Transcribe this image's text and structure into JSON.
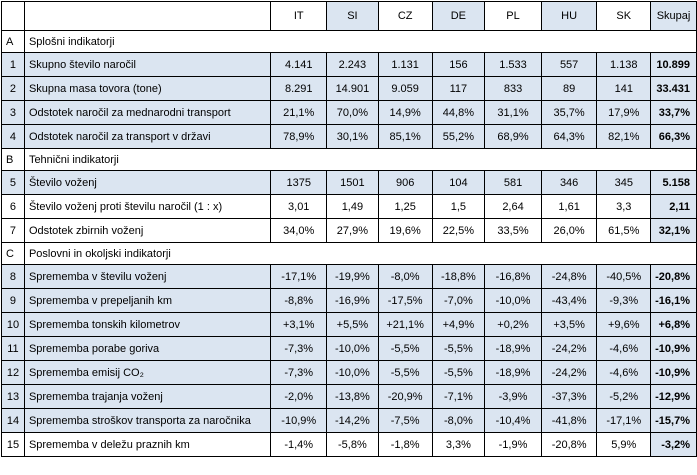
{
  "columns": [
    "IT",
    "SI",
    "CZ",
    "DE",
    "PL",
    "HU",
    "SK",
    "Skupaj"
  ],
  "sections": [
    {
      "letter": "A",
      "title": "Splošni indikatorji",
      "rows": [
        {
          "num": "1",
          "label": "Skupno število naročil",
          "values": [
            "4.141",
            "2.243",
            "1.131",
            "156",
            "1.533",
            "557",
            "1.138"
          ],
          "total": "10.899",
          "shade": "blue"
        },
        {
          "num": "2",
          "label": "Skupna masa tovora (tone)",
          "values": [
            "8.291",
            "14.901",
            "9.059",
            "117",
            "833",
            "89",
            "141"
          ],
          "total": "33.431",
          "shade": "blue"
        },
        {
          "num": "3",
          "label": "Odstotek naročil za mednarodni transport",
          "values": [
            "21,1%",
            "70,0%",
            "14,9%",
            "44,8%",
            "31,1%",
            "35,7%",
            "17,9%"
          ],
          "total": "33,7%",
          "shade": "blue"
        },
        {
          "num": "4",
          "label": "Odstotek naročil za transport v državi",
          "values": [
            "78,9%",
            "30,1%",
            "85,1%",
            "55,2%",
            "68,9%",
            "64,3%",
            "82,1%"
          ],
          "total": "66,3%",
          "shade": "blue"
        }
      ]
    },
    {
      "letter": "B",
      "title": "Tehnični indikatorji",
      "rows": [
        {
          "num": "5",
          "label": "Število voženj",
          "values": [
            "1375",
            "1501",
            "906",
            "104",
            "581",
            "346",
            "345"
          ],
          "total": "5.158",
          "shade": "blue"
        },
        {
          "num": "6",
          "label": "Število voženj proti številu naročil  (1 : x)",
          "values": [
            "3,01",
            "1,49",
            "1,25",
            "1,5",
            "2,64",
            "1,61",
            "3,3"
          ],
          "total": "2,11",
          "shade": "white"
        },
        {
          "num": "7",
          "label": "Odstotek zbirnih voženj",
          "values": [
            "34,0%",
            "27,9%",
            "19,6%",
            "22,5%",
            "33,5%",
            "26,0%",
            "61,5%"
          ],
          "total": "32,1%",
          "shade": "white"
        }
      ]
    },
    {
      "letter": "C",
      "title": "Poslovni in okoljski indikatorji",
      "rows": [
        {
          "num": "8",
          "label": "Sprememba v številu voženj",
          "values": [
            "-17,1%",
            "-19,9%",
            "-8,0%",
            "-18,8%",
            "-16,8%",
            "-24,8%",
            "-40,5%"
          ],
          "total": "-20,8%",
          "shade": "blue"
        },
        {
          "num": "9",
          "label": "Sprememba v prepeljanih  km",
          "values": [
            "-8,8%",
            "-16,9%",
            "-17,5%",
            "-7,0%",
            "-10,0%",
            "-43,4%",
            "-9,3%"
          ],
          "total": "-16,1%",
          "shade": "blue"
        },
        {
          "num": "10",
          "label": "Sprememba tonskih kilometrov",
          "values": [
            "+3,1%",
            "+5,5%",
            "+21,1%",
            "+4,9%",
            "+0,2%",
            "+3,5%",
            "+9,6%"
          ],
          "total": "+6,8%",
          "shade": "blue"
        },
        {
          "num": "11",
          "label": "Sprememba porabe goriva",
          "values": [
            "-7,3%",
            "-10,0%",
            "-5,5%",
            "-5,5%",
            "-18,9%",
            "-24,2%",
            "-4,6%"
          ],
          "total": "-10,9%",
          "shade": "blue"
        },
        {
          "num": "12",
          "label": "Sprememba emisij CO₂",
          "values": [
            "-7,3%",
            "-10,0%",
            "-5,5%",
            "-5,5%",
            "-18,9%",
            "-24,2%",
            "-4,6%"
          ],
          "total": "-10,9%",
          "shade": "blue"
        },
        {
          "num": "13",
          "label": "Sprememba trajanja voženj",
          "values": [
            "-2,0%",
            "-13,8%",
            "-20,9%",
            "-7,1%",
            "-3,9%",
            "-37,3%",
            "-5,2%"
          ],
          "total": "-12,9%",
          "shade": "blue"
        },
        {
          "num": "14",
          "label": "Sprememba stroškov transporta za naročnika",
          "values": [
            "-10,9%",
            "-14,2%",
            "-7,5%",
            "-8,0%",
            "-10,4%",
            "-41,8%",
            "-17,1%"
          ],
          "total": "-15,7%",
          "shade": "blue"
        },
        {
          "num": "15",
          "label": "Sprememba v deležu praznih km",
          "values": [
            "-1,4%",
            "-5,8%",
            "-1,8%",
            "3,3%",
            "-1,9%",
            "-20,8%",
            "5,9%"
          ],
          "total": "-3,2%",
          "shade": "white"
        }
      ]
    }
  ]
}
